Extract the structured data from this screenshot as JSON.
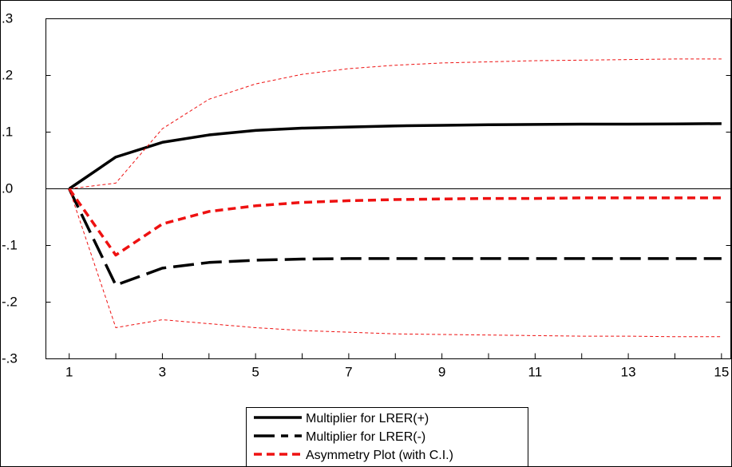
{
  "chart_data": {
    "type": "line",
    "title": "",
    "x": [
      1,
      2,
      3,
      4,
      5,
      6,
      7,
      8,
      9,
      10,
      11,
      12,
      13,
      14,
      15
    ],
    "xticks": [
      "1",
      "3",
      "5",
      "7",
      "9",
      "11",
      "13",
      "15"
    ],
    "yticks": [
      ".3",
      ".2",
      ".1",
      ".0",
      "-.1",
      "-.2",
      "-.3"
    ],
    "ytick_values": [
      0.3,
      0.2,
      0.1,
      0.0,
      -0.1,
      -0.2,
      -0.3
    ],
    "ylim": [
      -0.3,
      0.3
    ],
    "xlim": [
      0.5,
      15.2
    ],
    "zero_line": true,
    "legend_position": "bottom-center",
    "series": [
      {
        "name": "Multiplier for LRER(+)",
        "style": "solid-thick",
        "color": "#000000",
        "values": [
          0.0,
          0.056,
          0.082,
          0.095,
          0.103,
          0.107,
          0.109,
          0.111,
          0.112,
          0.113,
          0.1135,
          0.114,
          0.114,
          0.1145,
          0.115
        ]
      },
      {
        "name": "Multiplier for LRER(-)",
        "style": "long-dash-thick",
        "color": "#000000",
        "values": [
          0.0,
          -0.17,
          -0.14,
          -0.13,
          -0.126,
          -0.124,
          -0.123,
          -0.123,
          -0.123,
          -0.123,
          -0.123,
          -0.123,
          -0.123,
          -0.123,
          -0.123
        ]
      },
      {
        "name": "Asymmetry Plot (with C.I.)",
        "style": "dash-thick",
        "color": "#ee1111",
        "values": [
          0.0,
          -0.117,
          -0.062,
          -0.04,
          -0.03,
          -0.024,
          -0.021,
          -0.019,
          -0.018,
          -0.017,
          -0.017,
          -0.016,
          -0.016,
          -0.016,
          -0.016
        ]
      },
      {
        "name": "",
        "style": "dash-thin",
        "color": "#ee1111",
        "values": [
          0.0,
          0.01,
          0.106,
          0.158,
          0.185,
          0.202,
          0.212,
          0.218,
          0.222,
          0.224,
          0.226,
          0.227,
          0.228,
          0.229,
          0.229
        ]
      },
      {
        "name": "",
        "style": "dash-thin",
        "color": "#ee1111",
        "values": [
          0.0,
          -0.245,
          -0.231,
          -0.238,
          -0.245,
          -0.25,
          -0.253,
          -0.256,
          -0.257,
          -0.258,
          -0.259,
          -0.26,
          -0.26,
          -0.261,
          -0.261
        ]
      }
    ]
  }
}
